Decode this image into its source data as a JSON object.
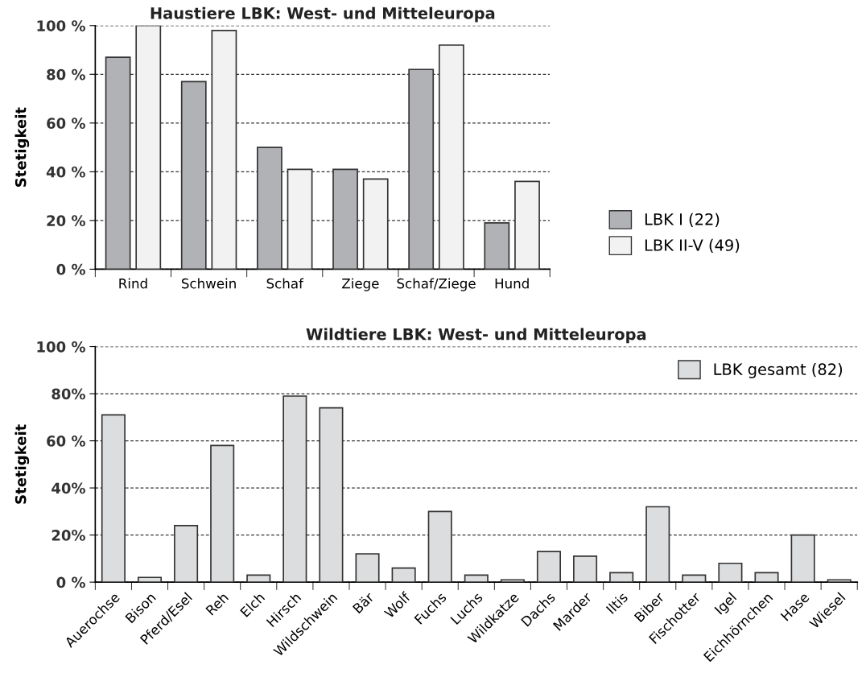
{
  "chart_data": [
    {
      "type": "bar",
      "title": "Haustiere LBK: West- und Mitteleuropa",
      "ylabel": "Stetigkeit",
      "categories": [
        "Rind",
        "Schwein",
        "Schaf",
        "Ziege",
        "Schaf/Ziege",
        "Hund"
      ],
      "series": [
        {
          "name": "LBK I (22)",
          "color": "#b1b2b5",
          "values": [
            87,
            77,
            50,
            41,
            82,
            19
          ]
        },
        {
          "name": "LBK II-V (49)",
          "color": "#f2f2f2",
          "values": [
            100,
            98,
            41,
            37,
            92,
            36
          ]
        }
      ],
      "ylim": [
        0,
        100
      ],
      "yticks": [
        {
          "value": 0,
          "label": "0 %"
        },
        {
          "value": 20,
          "label": "20 %"
        },
        {
          "value": 40,
          "label": "40 %"
        },
        {
          "value": 60,
          "label": "60 %"
        },
        {
          "value": 80,
          "label": "80 %"
        },
        {
          "value": 100,
          "label": "100 %"
        }
      ],
      "grid": "y",
      "legend": "right"
    },
    {
      "type": "bar",
      "title": "Wildtiere LBK: West- und Mitteleuropa",
      "ylabel": "Stetigkeit",
      "categories": [
        "Auerochse",
        "Bison",
        "Pferd/Esel",
        "Reh",
        "Elch",
        "Hirsch",
        "Wildschwein",
        "Bär",
        "Wolf",
        "Fuchs",
        "Luchs",
        "Wildkatze",
        "Dachs",
        "Marder",
        "Iltis",
        "Biber",
        "Fischotter",
        "Igel",
        "Eichhörnchen",
        "Hase",
        "Wiesel"
      ],
      "series": [
        {
          "name": "LBK gesamt (82)",
          "color": "#dcdddf",
          "values": [
            71,
            2,
            24,
            58,
            3,
            79,
            74,
            12,
            6,
            30,
            3,
            1,
            13,
            11,
            4,
            32,
            3,
            8,
            4,
            20,
            1
          ]
        }
      ],
      "ylim": [
        0,
        100
      ],
      "yticks": [
        {
          "value": 0,
          "label": "0 %"
        },
        {
          "value": 20,
          "label": "20%"
        },
        {
          "value": 40,
          "label": "40%"
        },
        {
          "value": 60,
          "label": "60 %"
        },
        {
          "value": 80,
          "label": "80%"
        },
        {
          "value": 100,
          "label": "100 %"
        }
      ],
      "grid": "y",
      "legend": "top right"
    }
  ]
}
